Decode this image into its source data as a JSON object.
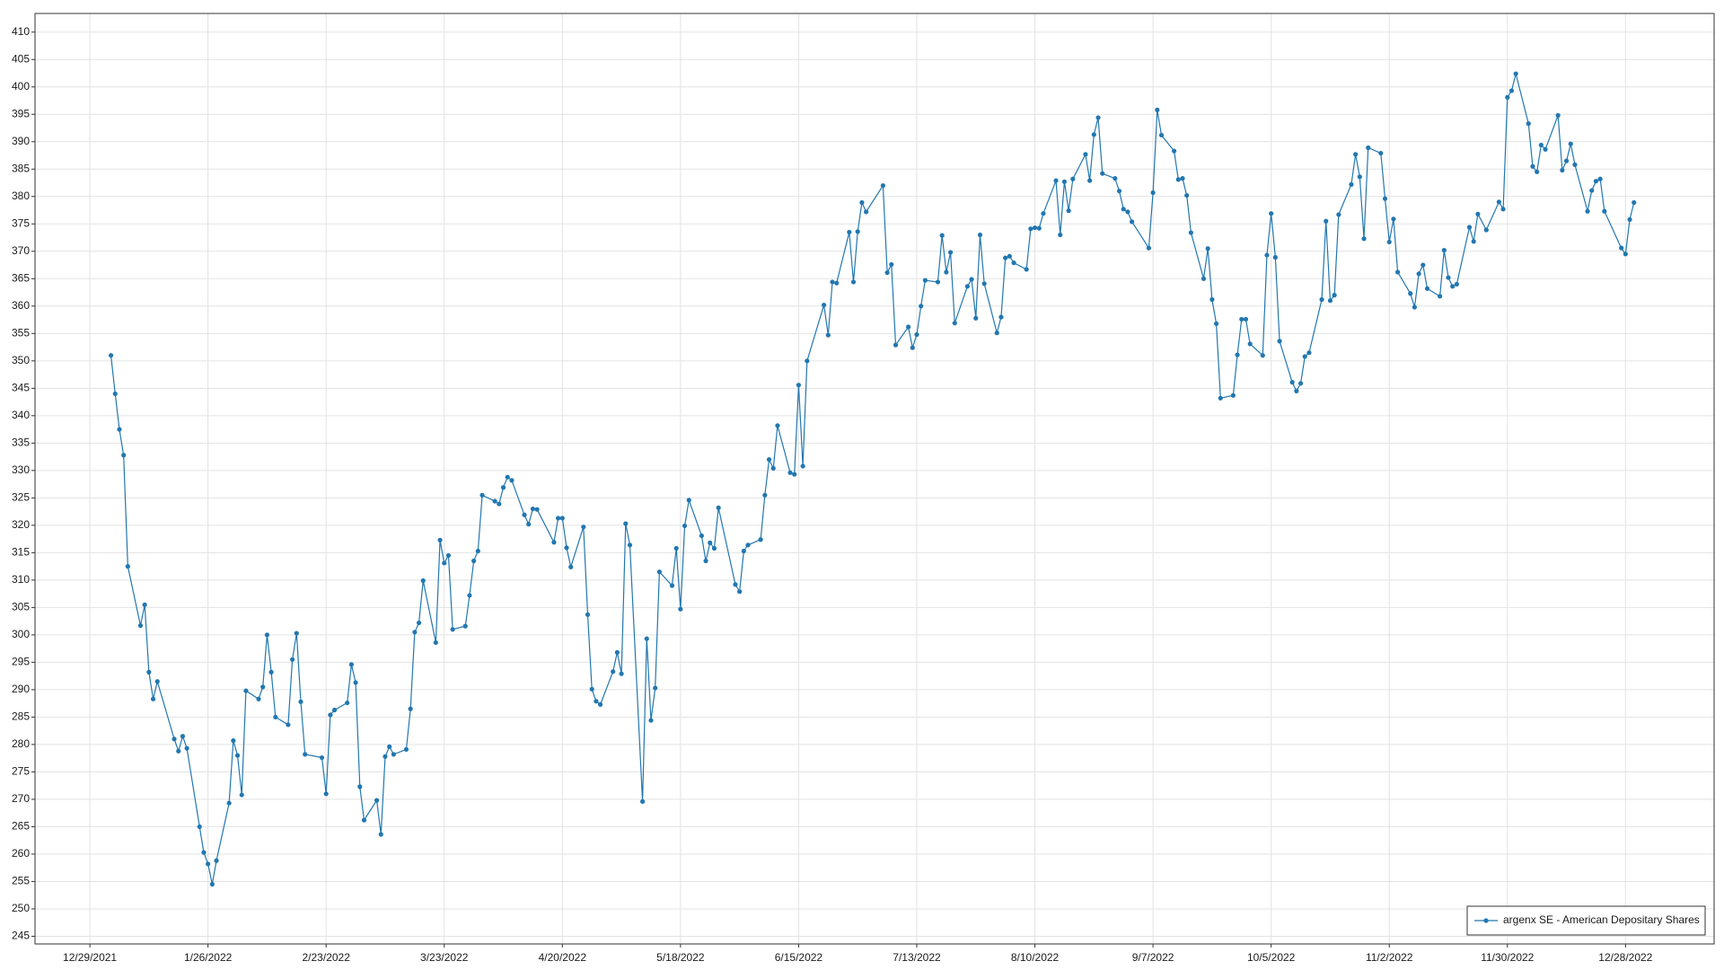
{
  "chart_data": {
    "type": "line",
    "x": [
      "2022-01-03",
      "2022-01-04",
      "2022-01-05",
      "2022-01-06",
      "2022-01-07",
      "2022-01-10",
      "2022-01-11",
      "2022-01-12",
      "2022-01-13",
      "2022-01-14",
      "2022-01-18",
      "2022-01-19",
      "2022-01-20",
      "2022-01-21",
      "2022-01-24",
      "2022-01-25",
      "2022-01-26",
      "2022-01-27",
      "2022-01-28",
      "2022-01-31",
      "2022-02-01",
      "2022-02-02",
      "2022-02-03",
      "2022-02-04",
      "2022-02-07",
      "2022-02-08",
      "2022-02-09",
      "2022-02-10",
      "2022-02-11",
      "2022-02-14",
      "2022-02-15",
      "2022-02-16",
      "2022-02-17",
      "2022-02-18",
      "2022-02-22",
      "2022-02-23",
      "2022-02-24",
      "2022-02-25",
      "2022-02-28",
      "2022-03-01",
      "2022-03-02",
      "2022-03-03",
      "2022-03-04",
      "2022-03-07",
      "2022-03-08",
      "2022-03-09",
      "2022-03-10",
      "2022-03-11",
      "2022-03-14",
      "2022-03-15",
      "2022-03-16",
      "2022-03-17",
      "2022-03-18",
      "2022-03-21",
      "2022-03-22",
      "2022-03-23",
      "2022-03-24",
      "2022-03-25",
      "2022-03-28",
      "2022-03-29",
      "2022-03-30",
      "2022-03-31",
      "2022-04-01",
      "2022-04-04",
      "2022-04-05",
      "2022-04-06",
      "2022-04-07",
      "2022-04-08",
      "2022-04-11",
      "2022-04-12",
      "2022-04-13",
      "2022-04-14",
      "2022-04-18",
      "2022-04-19",
      "2022-04-20",
      "2022-04-21",
      "2022-04-22",
      "2022-04-25",
      "2022-04-26",
      "2022-04-27",
      "2022-04-28",
      "2022-04-29",
      "2022-05-02",
      "2022-05-03",
      "2022-05-04",
      "2022-05-05",
      "2022-05-06",
      "2022-05-09",
      "2022-05-10",
      "2022-05-11",
      "2022-05-12",
      "2022-05-13",
      "2022-05-16",
      "2022-05-17",
      "2022-05-18",
      "2022-05-19",
      "2022-05-20",
      "2022-05-23",
      "2022-05-24",
      "2022-05-25",
      "2022-05-26",
      "2022-05-27",
      "2022-05-31",
      "2022-06-01",
      "2022-06-02",
      "2022-06-03",
      "2022-06-06",
      "2022-06-07",
      "2022-06-08",
      "2022-06-09",
      "2022-06-10",
      "2022-06-13",
      "2022-06-14",
      "2022-06-15",
      "2022-06-16",
      "2022-06-17",
      "2022-06-21",
      "2022-06-22",
      "2022-06-23",
      "2022-06-24",
      "2022-06-27",
      "2022-06-28",
      "2022-06-29",
      "2022-06-30",
      "2022-07-01",
      "2022-07-05",
      "2022-07-06",
      "2022-07-07",
      "2022-07-08",
      "2022-07-11",
      "2022-07-12",
      "2022-07-13",
      "2022-07-14",
      "2022-07-15",
      "2022-07-18",
      "2022-07-19",
      "2022-07-20",
      "2022-07-21",
      "2022-07-22",
      "2022-07-25",
      "2022-07-26",
      "2022-07-27",
      "2022-07-28",
      "2022-07-29",
      "2022-08-01",
      "2022-08-02",
      "2022-08-03",
      "2022-08-04",
      "2022-08-05",
      "2022-08-08",
      "2022-08-09",
      "2022-08-10",
      "2022-08-11",
      "2022-08-12",
      "2022-08-15",
      "2022-08-16",
      "2022-08-17",
      "2022-08-18",
      "2022-08-19",
      "2022-08-22",
      "2022-08-23",
      "2022-08-24",
      "2022-08-25",
      "2022-08-26",
      "2022-08-29",
      "2022-08-30",
      "2022-08-31",
      "2022-09-01",
      "2022-09-02",
      "2022-09-06",
      "2022-09-07",
      "2022-09-08",
      "2022-09-09",
      "2022-09-12",
      "2022-09-13",
      "2022-09-14",
      "2022-09-15",
      "2022-09-16",
      "2022-09-19",
      "2022-09-20",
      "2022-09-21",
      "2022-09-22",
      "2022-09-23",
      "2022-09-26",
      "2022-09-27",
      "2022-09-28",
      "2022-09-29",
      "2022-09-30",
      "2022-10-03",
      "2022-10-04",
      "2022-10-05",
      "2022-10-06",
      "2022-10-07",
      "2022-10-10",
      "2022-10-11",
      "2022-10-12",
      "2022-10-13",
      "2022-10-14",
      "2022-10-17",
      "2022-10-18",
      "2022-10-19",
      "2022-10-20",
      "2022-10-21",
      "2022-10-24",
      "2022-10-25",
      "2022-10-26",
      "2022-10-27",
      "2022-10-28",
      "2022-10-31",
      "2022-11-01",
      "2022-11-02",
      "2022-11-03",
      "2022-11-04",
      "2022-11-07",
      "2022-11-08",
      "2022-11-09",
      "2022-11-10",
      "2022-11-11",
      "2022-11-14",
      "2022-11-15",
      "2022-11-16",
      "2022-11-17",
      "2022-11-18",
      "2022-11-21",
      "2022-11-22",
      "2022-11-23",
      "2022-11-25",
      "2022-11-28",
      "2022-11-29",
      "2022-11-30",
      "2022-12-01",
      "2022-12-02",
      "2022-12-05",
      "2022-12-06",
      "2022-12-07",
      "2022-12-08",
      "2022-12-09",
      "2022-12-12",
      "2022-12-13",
      "2022-12-14",
      "2022-12-15",
      "2022-12-16",
      "2022-12-19",
      "2022-12-20",
      "2022-12-21",
      "2022-12-22",
      "2022-12-23",
      "2022-12-27",
      "2022-12-28",
      "2022-12-29",
      "2022-12-30"
    ],
    "series": [
      {
        "name": "argenx SE - American Depositary Shares",
        "color": "#2277b0",
        "values": [
          351,
          344,
          337.5,
          332.8,
          312.5,
          301.7,
          305.5,
          293.2,
          288.3,
          291.5,
          281,
          278.8,
          281.5,
          279.3,
          265,
          260.3,
          258.2,
          254.5,
          258.8,
          269.3,
          280.7,
          278,
          270.8,
          289.8,
          288.3,
          290.5,
          300,
          293.2,
          285,
          283.6,
          295.5,
          300.3,
          287.8,
          278.2,
          277.6,
          271,
          285.4,
          286.3,
          287.6,
          294.6,
          291.3,
          272.3,
          266.2,
          269.8,
          263.6,
          277.8,
          279.6,
          278.2,
          279.1,
          286.5,
          300.5,
          302.2,
          309.9,
          298.6,
          317.3,
          313.1,
          314.5,
          301,
          301.6,
          307.2,
          313.5,
          315.3,
          325.5,
          324.4,
          323.9,
          326.9,
          328.8,
          328.2,
          321.9,
          320.2,
          323,
          322.9,
          316.9,
          321.3,
          321.3,
          315.9,
          312.4,
          319.7,
          303.7,
          290.1,
          287.9,
          287.3,
          293.3,
          296.8,
          292.9,
          320.3,
          316.4,
          269.6,
          299.3,
          284.4,
          290.3,
          311.5,
          309,
          315.8,
          304.7,
          319.9,
          324.6,
          318.1,
          313.5,
          316.8,
          315.8,
          323.2,
          309.2,
          307.9,
          315.3,
          316.4,
          317.4,
          325.5,
          332,
          330.4,
          338.2,
          329.6,
          329.3,
          345.6,
          330.8,
          350,
          360.2,
          354.7,
          364.4,
          364.2,
          373.5,
          364.4,
          373.6,
          378.9,
          377.2,
          382,
          366.1,
          367.6,
          352.9,
          356.2,
          352.4,
          354.8,
          360,
          364.7,
          364.4,
          372.9,
          366.2,
          369.8,
          356.9,
          363.6,
          364.9,
          357.8,
          373,
          364.1,
          355.1,
          358,
          368.8,
          369.1,
          367.9,
          366.7,
          374.1,
          374.3,
          374.2,
          376.9,
          382.9,
          373,
          382.7,
          377.4,
          383.2,
          387.7,
          382.9,
          391.3,
          394.4,
          384.2,
          383.3,
          381,
          377.7,
          377.2,
          375.4,
          370.6,
          380.7,
          395.8,
          391.2,
          388.3,
          383.1,
          383.3,
          380.2,
          373.4,
          365,
          370.5,
          361.2,
          356.8,
          343.2,
          343.7,
          351.1,
          357.6,
          357.6,
          353.1,
          351,
          369.3,
          376.9,
          368.9,
          353.6,
          346.1,
          344.5,
          345.9,
          350.8,
          351.5,
          361.2,
          375.5,
          361,
          362,
          376.7,
          382.2,
          387.7,
          383.6,
          372.3,
          388.9,
          387.9,
          379.6,
          371.7,
          375.9,
          366.2,
          362.3,
          359.8,
          365.9,
          367.5,
          363.2,
          361.8,
          370.2,
          365.2,
          363.6,
          364,
          374.4,
          371.8,
          376.8,
          373.9,
          379,
          377.7,
          398.1,
          399.3,
          402.4,
          393.3,
          385.5,
          384.5,
          389.4,
          388.6,
          394.8,
          384.8,
          386.5,
          389.6,
          385.8,
          377.3,
          381.1,
          382.8,
          383.2,
          377.3,
          370.6,
          369.5,
          375.8,
          378.9
        ]
      }
    ],
    "xlim": [
      "2021-12-16",
      "2023-01-18"
    ],
    "xticks": [
      {
        "value": "2021-12-29",
        "label": "12/29/2021"
      },
      {
        "value": "2022-01-26",
        "label": "1/26/2022"
      },
      {
        "value": "2022-02-23",
        "label": "2/23/2022"
      },
      {
        "value": "2022-03-23",
        "label": "3/23/2022"
      },
      {
        "value": "2022-04-20",
        "label": "4/20/2022"
      },
      {
        "value": "2022-05-18",
        "label": "5/18/2022"
      },
      {
        "value": "2022-06-15",
        "label": "6/15/2022"
      },
      {
        "value": "2022-07-13",
        "label": "7/13/2022"
      },
      {
        "value": "2022-08-10",
        "label": "8/10/2022"
      },
      {
        "value": "2022-09-07",
        "label": "9/7/2022"
      },
      {
        "value": "2022-10-05",
        "label": "10/5/2022"
      },
      {
        "value": "2022-11-02",
        "label": "11/2/2022"
      },
      {
        "value": "2022-11-30",
        "label": "11/30/2022"
      },
      {
        "value": "2022-12-28",
        "label": "12/28/2022"
      }
    ],
    "ylim": [
      243.6,
      413.4
    ],
    "yticks": [
      245,
      250,
      255,
      260,
      265,
      270,
      275,
      280,
      285,
      290,
      295,
      300,
      305,
      310,
      315,
      320,
      325,
      330,
      335,
      340,
      345,
      350,
      355,
      360,
      365,
      370,
      375,
      380,
      385,
      390,
      395,
      400,
      405,
      410
    ],
    "grid": true,
    "legend": "lower right"
  }
}
